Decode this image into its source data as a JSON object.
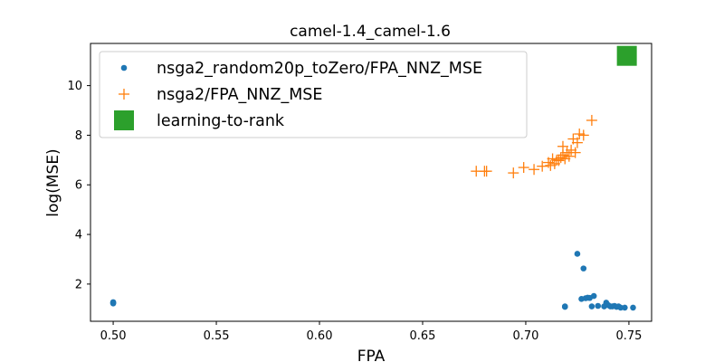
{
  "chart_data": {
    "type": "scatter",
    "title": "camel-1.4_camel-1.6",
    "xlabel": "FPA",
    "ylabel": "log(MSE)",
    "xlim": [
      0.489,
      0.761
    ],
    "ylim": [
      0.5,
      11.7
    ],
    "xticks": [
      0.5,
      0.55,
      0.6,
      0.65,
      0.7,
      0.75
    ],
    "xtick_labels": [
      "0.50",
      "0.55",
      "0.60",
      "0.65",
      "0.70",
      "0.75"
    ],
    "yticks": [
      2,
      4,
      6,
      8,
      10
    ],
    "ytick_labels": [
      "2",
      "4",
      "6",
      "8",
      "10"
    ],
    "grid": false,
    "legend_position": "top-left",
    "series": [
      {
        "name": "nsga2_random20p_toZero/FPA_NNZ_MSE",
        "marker": "circle",
        "color": "#1f77b4",
        "points": [
          [
            0.5,
            1.27
          ],
          [
            0.5,
            1.24
          ],
          [
            0.5,
            1.22
          ],
          [
            0.719,
            1.1
          ],
          [
            0.719,
            1.08
          ],
          [
            0.725,
            3.22
          ],
          [
            0.727,
            1.4
          ],
          [
            0.728,
            2.63
          ],
          [
            0.729,
            1.43
          ],
          [
            0.73,
            1.45
          ],
          [
            0.731,
            1.44
          ],
          [
            0.732,
            1.1
          ],
          [
            0.733,
            1.52
          ],
          [
            0.735,
            1.12
          ],
          [
            0.738,
            1.1
          ],
          [
            0.739,
            1.25
          ],
          [
            0.74,
            1.15
          ],
          [
            0.741,
            1.1
          ],
          [
            0.742,
            1.1
          ],
          [
            0.743,
            1.12
          ],
          [
            0.744,
            1.08
          ],
          [
            0.745,
            1.1
          ],
          [
            0.746,
            1.05
          ],
          [
            0.748,
            1.05
          ],
          [
            0.752,
            1.05
          ]
        ]
      },
      {
        "name": "nsga2/FPA_NNZ_MSE",
        "marker": "plus",
        "color": "#ff7f0e",
        "points": [
          [
            0.676,
            6.55
          ],
          [
            0.68,
            6.55
          ],
          [
            0.681,
            6.55
          ],
          [
            0.694,
            6.48
          ],
          [
            0.699,
            6.7
          ],
          [
            0.704,
            6.62
          ],
          [
            0.708,
            6.75
          ],
          [
            0.711,
            6.9
          ],
          [
            0.712,
            6.78
          ],
          [
            0.713,
            7.05
          ],
          [
            0.714,
            6.85
          ],
          [
            0.715,
            7.0
          ],
          [
            0.716,
            6.98
          ],
          [
            0.717,
            7.1
          ],
          [
            0.718,
            7.2
          ],
          [
            0.718,
            7.55
          ],
          [
            0.719,
            7.05
          ],
          [
            0.72,
            7.3
          ],
          [
            0.721,
            7.15
          ],
          [
            0.722,
            7.4
          ],
          [
            0.723,
            7.85
          ],
          [
            0.724,
            7.3
          ],
          [
            0.725,
            7.7
          ],
          [
            0.726,
            8.05
          ],
          [
            0.728,
            8.0
          ],
          [
            0.732,
            8.6
          ]
        ]
      },
      {
        "name": "learning-to-rank",
        "marker": "square",
        "color": "#2ca02c",
        "points": [
          [
            0.749,
            11.2
          ]
        ]
      }
    ]
  }
}
